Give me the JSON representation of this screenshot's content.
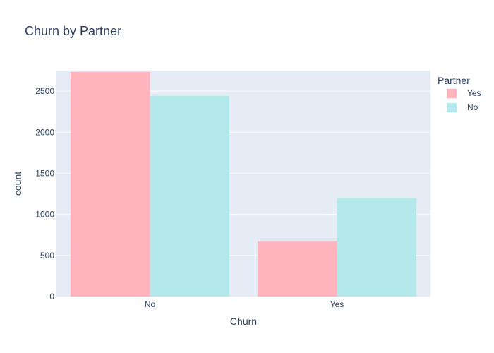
{
  "chart_data": {
    "type": "bar",
    "title": "Churn by Partner",
    "xlabel": "Churn",
    "ylabel": "count",
    "categories": [
      "No",
      "Yes"
    ],
    "series": [
      {
        "name": "Yes",
        "values": [
          2733,
          669
        ],
        "color": "#ffb3bc"
      },
      {
        "name": "No",
        "values": [
          2441,
          1200
        ],
        "color": "#b3e9ea"
      }
    ],
    "ylim": [
      0,
      2750
    ],
    "yticks": [
      0,
      500,
      1000,
      1500,
      2000,
      2500
    ],
    "grid": true,
    "legend": {
      "title": "Partner",
      "placement": "top-right"
    },
    "colors": {
      "plot_bg": "#e5ecf6",
      "grid": "#ffffff",
      "text": "#2a3f5f"
    }
  }
}
